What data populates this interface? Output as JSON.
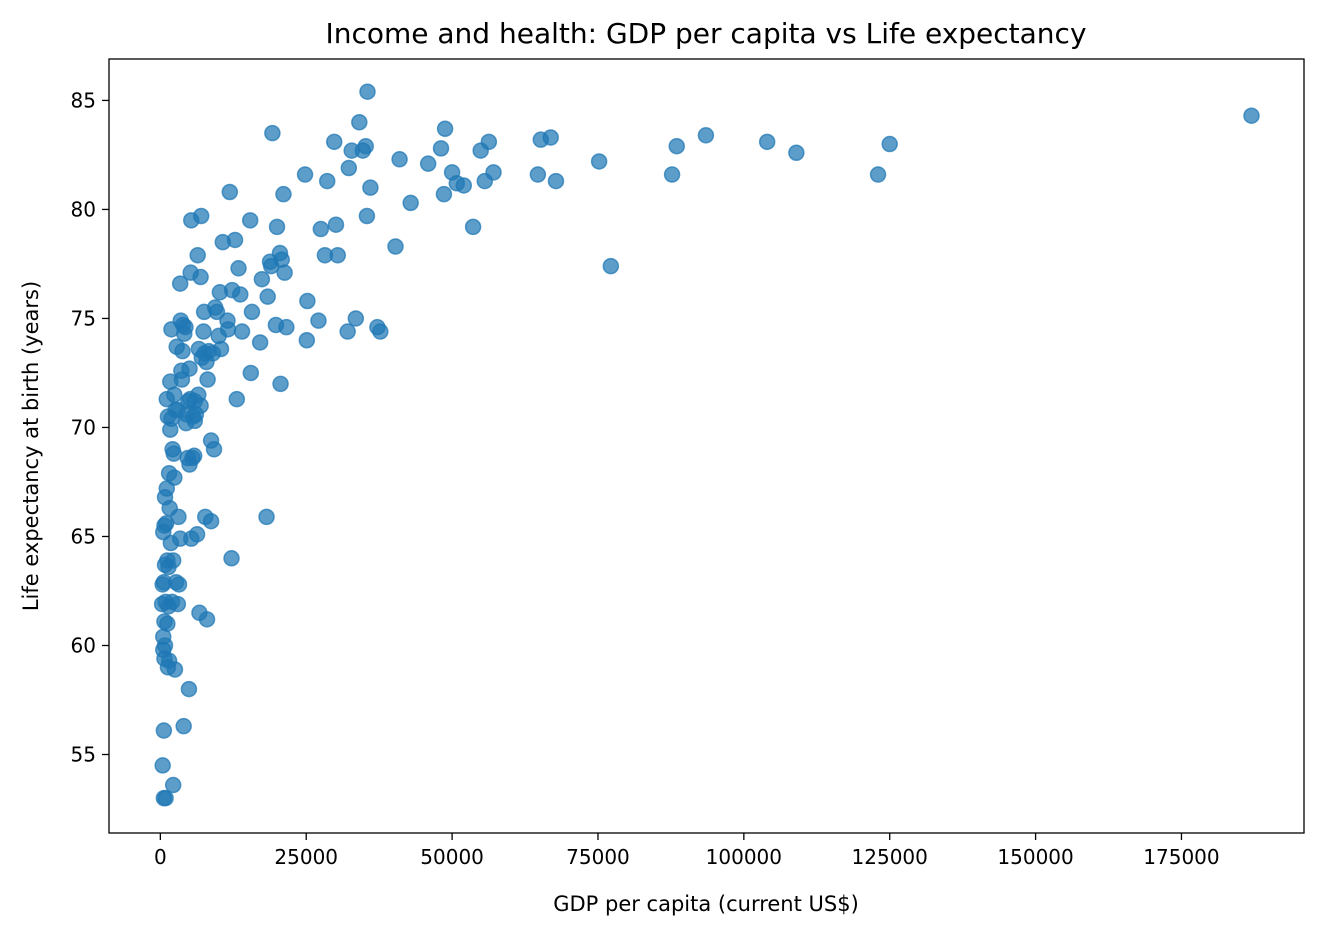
{
  "chart_data": {
    "type": "scatter",
    "title": "Income and health: GDP per capita vs Life expectancy",
    "xlabel": "GDP per capita (current US$)",
    "ylabel": "Life expectancy at birth (years)",
    "xlim": [
      -8800,
      196000
    ],
    "ylim": [
      51.4,
      86.9
    ],
    "xticks": [
      0,
      25000,
      50000,
      75000,
      100000,
      125000,
      150000,
      175000
    ],
    "xtick_labels": [
      "0",
      "25000",
      "50000",
      "75000",
      "100000",
      "125000",
      "150000",
      "175000"
    ],
    "yticks": [
      55,
      60,
      65,
      70,
      75,
      80,
      85
    ],
    "ytick_labels": [
      "55",
      "60",
      "65",
      "70",
      "75",
      "80",
      "85"
    ],
    "grid": false,
    "marker_color": "#1f77b4",
    "series": [
      {
        "points": [
          [
            187000,
            84.3
          ],
          [
            125000,
            83.0
          ],
          [
            123000,
            81.6
          ],
          [
            109000,
            82.6
          ],
          [
            104000,
            83.1
          ],
          [
            93500,
            83.4
          ],
          [
            88500,
            82.9
          ],
          [
            87700,
            81.6
          ],
          [
            77200,
            77.4
          ],
          [
            75200,
            82.2
          ],
          [
            67800,
            81.3
          ],
          [
            66900,
            83.3
          ],
          [
            65200,
            83.2
          ],
          [
            64700,
            81.6
          ],
          [
            57100,
            81.7
          ],
          [
            56300,
            83.1
          ],
          [
            55600,
            81.3
          ],
          [
            54900,
            82.7
          ],
          [
            53600,
            79.2
          ],
          [
            52000,
            81.1
          ],
          [
            50800,
            81.2
          ],
          [
            50000,
            81.7
          ],
          [
            48800,
            83.7
          ],
          [
            48600,
            80.7
          ],
          [
            48100,
            82.8
          ],
          [
            45900,
            82.1
          ],
          [
            42900,
            80.3
          ],
          [
            41000,
            82.3
          ],
          [
            40300,
            78.3
          ],
          [
            37700,
            74.4
          ],
          [
            37200,
            74.6
          ],
          [
            36000,
            81.0
          ],
          [
            35500,
            85.4
          ],
          [
            35400,
            79.7
          ],
          [
            35200,
            82.9
          ],
          [
            34700,
            82.7
          ],
          [
            34100,
            84.0
          ],
          [
            33500,
            75.0
          ],
          [
            32800,
            82.7
          ],
          [
            32300,
            81.9
          ],
          [
            32100,
            74.4
          ],
          [
            30400,
            77.9
          ],
          [
            30100,
            79.3
          ],
          [
            29800,
            83.1
          ],
          [
            28600,
            81.3
          ],
          [
            28200,
            77.9
          ],
          [
            27500,
            79.1
          ],
          [
            27100,
            74.9
          ],
          [
            25200,
            75.8
          ],
          [
            25100,
            74.0
          ],
          [
            24800,
            81.6
          ],
          [
            21600,
            74.6
          ],
          [
            21300,
            77.1
          ],
          [
            21100,
            80.7
          ],
          [
            20800,
            77.7
          ],
          [
            20600,
            72.0
          ],
          [
            20500,
            78.0
          ],
          [
            20000,
            79.2
          ],
          [
            19800,
            74.7
          ],
          [
            19200,
            83.5
          ],
          [
            19000,
            77.4
          ],
          [
            18800,
            77.6
          ],
          [
            18400,
            76.0
          ],
          [
            18200,
            65.9
          ],
          [
            17400,
            76.8
          ],
          [
            17100,
            73.9
          ],
          [
            15700,
            75.3
          ],
          [
            15500,
            72.5
          ],
          [
            15400,
            79.5
          ],
          [
            14000,
            74.4
          ],
          [
            13700,
            76.1
          ],
          [
            13400,
            77.3
          ],
          [
            13100,
            71.3
          ],
          [
            12800,
            78.6
          ],
          [
            12300,
            76.3
          ],
          [
            12200,
            64.0
          ],
          [
            11900,
            80.8
          ],
          [
            11600,
            74.5
          ],
          [
            11500,
            74.9
          ],
          [
            10700,
            78.5
          ],
          [
            10400,
            73.6
          ],
          [
            10200,
            76.2
          ],
          [
            10000,
            74.2
          ],
          [
            9700,
            75.3
          ],
          [
            9400,
            75.5
          ],
          [
            9200,
            69.0
          ],
          [
            9000,
            73.4
          ],
          [
            8700,
            69.4
          ],
          [
            8700,
            65.7
          ],
          [
            8300,
            73.5
          ],
          [
            8100,
            72.2
          ],
          [
            8000,
            61.2
          ],
          [
            7900,
            73.0
          ],
          [
            7700,
            65.9
          ],
          [
            7600,
            73.4
          ],
          [
            7500,
            75.3
          ],
          [
            7400,
            74.4
          ],
          [
            7100,
            73.2
          ],
          [
            7000,
            79.7
          ],
          [
            6900,
            71.0
          ],
          [
            6900,
            76.9
          ],
          [
            6700,
            61.5
          ],
          [
            6600,
            73.6
          ],
          [
            6500,
            71.5
          ],
          [
            6400,
            77.9
          ],
          [
            6300,
            65.1
          ],
          [
            6100,
            70.6
          ],
          [
            5900,
            70.3
          ],
          [
            5900,
            71.2
          ],
          [
            5800,
            68.7
          ],
          [
            5600,
            70.5
          ],
          [
            5500,
            68.6
          ],
          [
            5300,
            79.5
          ],
          [
            5300,
            64.9
          ],
          [
            5200,
            77.1
          ],
          [
            5100,
            71.3
          ],
          [
            5000,
            68.3
          ],
          [
            5000,
            72.7
          ],
          [
            4900,
            58.0
          ],
          [
            4800,
            71.2
          ],
          [
            4700,
            68.6
          ],
          [
            4500,
            70.6
          ],
          [
            4400,
            70.2
          ],
          [
            4300,
            74.6
          ],
          [
            4100,
            74.3
          ],
          [
            4000,
            56.3
          ],
          [
            3900,
            74.7
          ],
          [
            3800,
            73.5
          ],
          [
            3700,
            72.2
          ],
          [
            3600,
            72.6
          ],
          [
            3500,
            74.9
          ],
          [
            3400,
            64.9
          ],
          [
            3400,
            76.6
          ],
          [
            3200,
            62.8
          ],
          [
            3100,
            65.9
          ],
          [
            3000,
            70.8
          ],
          [
            3000,
            61.9
          ],
          [
            2800,
            73.7
          ],
          [
            2700,
            62.9
          ],
          [
            2600,
            70.8
          ],
          [
            2500,
            58.9
          ],
          [
            2400,
            71.5
          ],
          [
            2400,
            67.7
          ],
          [
            2300,
            68.8
          ],
          [
            2200,
            63.9
          ],
          [
            2200,
            53.6
          ],
          [
            2100,
            69.0
          ],
          [
            2000,
            62.0
          ],
          [
            1900,
            74.5
          ],
          [
            1900,
            70.4
          ],
          [
            1800,
            64.7
          ],
          [
            1700,
            69.9
          ],
          [
            1700,
            72.1
          ],
          [
            1600,
            66.3
          ],
          [
            1500,
            67.9
          ],
          [
            1500,
            59.3
          ],
          [
            1400,
            63.6
          ],
          [
            1400,
            61.8
          ],
          [
            1300,
            59.0
          ],
          [
            1300,
            70.5
          ],
          [
            1200,
            61.0
          ],
          [
            1200,
            63.9
          ],
          [
            1100,
            67.2
          ],
          [
            1100,
            71.3
          ],
          [
            1000,
            65.6
          ],
          [
            900,
            62.0
          ],
          [
            900,
            53.0
          ],
          [
            800,
            66.8
          ],
          [
            800,
            60.0
          ],
          [
            800,
            63.7
          ],
          [
            700,
            59.4
          ],
          [
            700,
            61.1
          ],
          [
            700,
            65.5
          ],
          [
            600,
            62.9
          ],
          [
            600,
            53.0
          ],
          [
            600,
            56.1
          ],
          [
            500,
            59.8
          ],
          [
            500,
            60.4
          ],
          [
            500,
            65.2
          ],
          [
            400,
            62.8
          ],
          [
            400,
            54.5
          ],
          [
            300,
            61.9
          ]
        ]
      }
    ]
  }
}
